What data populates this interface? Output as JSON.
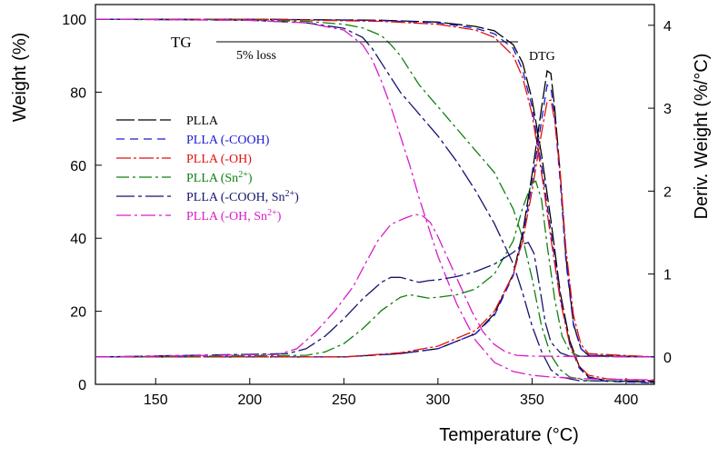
{
  "chart_data": {
    "type": "line",
    "xlabel": "Temperature (°C)",
    "ylabel_left": "Weight (%)",
    "ylabel_right": "Deriv. Weight (%/°C)",
    "xlim": [
      118,
      415
    ],
    "ylim_left": [
      0,
      104
    ],
    "ylim_right": [
      -0.33,
      4.25
    ],
    "x_ticks": [
      150,
      200,
      250,
      300,
      350,
      400
    ],
    "y_ticks_left": [
      0,
      20,
      40,
      60,
      80,
      100
    ],
    "y_ticks_right": [
      0,
      1,
      2,
      3,
      4
    ],
    "grid": false,
    "legend_position": "upper-left",
    "annotations": {
      "tg": "TG",
      "loss": "5% loss",
      "dtg": "DTG"
    },
    "series": [
      {
        "name": "PLLA",
        "legend_main": "PLLA",
        "legend_sup": "",
        "legend_tail": "",
        "color": "#000000",
        "dash": "20,4",
        "tg": [
          [
            118,
            100
          ],
          [
            200,
            100
          ],
          [
            270,
            99.7
          ],
          [
            300,
            99.2
          ],
          [
            320,
            98
          ],
          [
            330,
            96.8
          ],
          [
            340,
            93
          ],
          [
            345,
            88
          ],
          [
            350,
            78
          ],
          [
            355,
            63
          ],
          [
            360,
            45
          ],
          [
            365,
            25
          ],
          [
            370,
            12
          ],
          [
            375,
            5
          ],
          [
            380,
            2
          ],
          [
            390,
            1
          ],
          [
            415,
            0.5
          ]
        ],
        "dtg": [
          [
            118,
            0
          ],
          [
            250,
            0
          ],
          [
            280,
            0.04
          ],
          [
            300,
            0.1
          ],
          [
            320,
            0.28
          ],
          [
            330,
            0.52
          ],
          [
            340,
            1.0
          ],
          [
            345,
            1.5
          ],
          [
            350,
            2.2
          ],
          [
            355,
            3.0
          ],
          [
            358,
            3.45
          ],
          [
            360,
            3.42
          ],
          [
            362,
            3.0
          ],
          [
            365,
            2.2
          ],
          [
            368,
            1.2
          ],
          [
            372,
            0.4
          ],
          [
            376,
            0.1
          ],
          [
            380,
            0.02
          ],
          [
            415,
            0
          ]
        ]
      },
      {
        "name": "PLLA (-COOH)",
        "legend_main": "PLLA (-COOH)",
        "legend_sup": "",
        "legend_tail": "",
        "color": "#1a1ad0",
        "dash": "9,6",
        "tg": [
          [
            118,
            100
          ],
          [
            200,
            100
          ],
          [
            270,
            99.6
          ],
          [
            300,
            99
          ],
          [
            320,
            97.5
          ],
          [
            330,
            96
          ],
          [
            340,
            92
          ],
          [
            345,
            86
          ],
          [
            350,
            76
          ],
          [
            355,
            60
          ],
          [
            360,
            42
          ],
          [
            365,
            24
          ],
          [
            370,
            11
          ],
          [
            375,
            4.5
          ],
          [
            380,
            1.8
          ],
          [
            390,
            0.8
          ],
          [
            415,
            0.4
          ]
        ],
        "dtg": [
          [
            118,
            0
          ],
          [
            250,
            0
          ],
          [
            280,
            0.04
          ],
          [
            300,
            0.1
          ],
          [
            320,
            0.28
          ],
          [
            330,
            0.5
          ],
          [
            340,
            0.98
          ],
          [
            345,
            1.45
          ],
          [
            350,
            2.1
          ],
          [
            355,
            2.85
          ],
          [
            358,
            3.28
          ],
          [
            360,
            3.25
          ],
          [
            362,
            2.9
          ],
          [
            365,
            2.1
          ],
          [
            368,
            1.15
          ],
          [
            372,
            0.38
          ],
          [
            376,
            0.1
          ],
          [
            380,
            0.02
          ],
          [
            415,
            0
          ]
        ]
      },
      {
        "name": "PLLA (-OH)",
        "legend_main": "PLLA (-OH)",
        "legend_sup": "",
        "legend_tail": "",
        "color": "#e01010",
        "dash": "16,3,3,3",
        "tg": [
          [
            118,
            100
          ],
          [
            200,
            100
          ],
          [
            270,
            99.4
          ],
          [
            300,
            98.6
          ],
          [
            320,
            97
          ],
          [
            330,
            95
          ],
          [
            340,
            90
          ],
          [
            345,
            84
          ],
          [
            350,
            74
          ],
          [
            355,
            58
          ],
          [
            360,
            40
          ],
          [
            365,
            23
          ],
          [
            370,
            11
          ],
          [
            375,
            5
          ],
          [
            380,
            2.5
          ],
          [
            390,
            1.5
          ],
          [
            415,
            1
          ]
        ],
        "dtg": [
          [
            118,
            0
          ],
          [
            250,
            0
          ],
          [
            280,
            0.05
          ],
          [
            300,
            0.13
          ],
          [
            320,
            0.32
          ],
          [
            330,
            0.55
          ],
          [
            340,
            1.0
          ],
          [
            345,
            1.4
          ],
          [
            350,
            2.0
          ],
          [
            355,
            2.7
          ],
          [
            358,
            3.08
          ],
          [
            360,
            3.1
          ],
          [
            362,
            2.85
          ],
          [
            365,
            2.2
          ],
          [
            368,
            1.3
          ],
          [
            372,
            0.5
          ],
          [
            376,
            0.15
          ],
          [
            380,
            0.04
          ],
          [
            415,
            0
          ]
        ]
      },
      {
        "name": "PLLA (Sn2+)",
        "legend_main": "PLLA (Sn",
        "legend_sup": "2+",
        "legend_tail": ")",
        "color": "#108010",
        "dash": "14,4,3,4",
        "tg": [
          [
            118,
            100
          ],
          [
            200,
            99.8
          ],
          [
            230,
            99.4
          ],
          [
            250,
            98.6
          ],
          [
            260,
            97.6
          ],
          [
            270,
            95.5
          ],
          [
            275,
            93
          ],
          [
            280,
            90
          ],
          [
            285,
            86
          ],
          [
            290,
            82
          ],
          [
            300,
            76
          ],
          [
            310,
            70
          ],
          [
            320,
            64
          ],
          [
            330,
            58
          ],
          [
            340,
            48
          ],
          [
            345,
            40
          ],
          [
            350,
            29
          ],
          [
            355,
            16
          ],
          [
            360,
            8
          ],
          [
            365,
            4
          ],
          [
            370,
            2
          ],
          [
            380,
            1
          ],
          [
            415,
            0.8
          ]
        ],
        "dtg": [
          [
            118,
            0
          ],
          [
            230,
            0.02
          ],
          [
            240,
            0.06
          ],
          [
            250,
            0.16
          ],
          [
            260,
            0.34
          ],
          [
            270,
            0.56
          ],
          [
            280,
            0.72
          ],
          [
            285,
            0.75
          ],
          [
            290,
            0.73
          ],
          [
            295,
            0.71
          ],
          [
            300,
            0.72
          ],
          [
            310,
            0.75
          ],
          [
            320,
            0.82
          ],
          [
            330,
            1.0
          ],
          [
            340,
            1.4
          ],
          [
            345,
            1.8
          ],
          [
            350,
            2.1
          ],
          [
            352,
            2.12
          ],
          [
            355,
            1.9
          ],
          [
            358,
            1.35
          ],
          [
            362,
            0.7
          ],
          [
            366,
            0.25
          ],
          [
            370,
            0.07
          ],
          [
            375,
            0.01
          ],
          [
            415,
            0
          ]
        ]
      },
      {
        "name": "PLLA (-COOH, Sn2+)",
        "legend_main": "PLLA (-COOH, Sn",
        "legend_sup": "2+",
        "legend_tail": ")",
        "color": "#14146e",
        "dash": "20,4,4,4",
        "tg": [
          [
            118,
            100
          ],
          [
            200,
            99.7
          ],
          [
            230,
            99
          ],
          [
            250,
            97.5
          ],
          [
            260,
            95
          ],
          [
            265,
            92
          ],
          [
            270,
            88
          ],
          [
            275,
            84
          ],
          [
            280,
            80
          ],
          [
            285,
            77
          ],
          [
            290,
            74
          ],
          [
            300,
            68
          ],
          [
            310,
            61
          ],
          [
            320,
            53
          ],
          [
            330,
            44
          ],
          [
            340,
            33
          ],
          [
            345,
            25
          ],
          [
            350,
            16
          ],
          [
            355,
            9
          ],
          [
            360,
            4
          ],
          [
            365,
            2
          ],
          [
            375,
            1
          ],
          [
            415,
            0.8
          ]
        ],
        "dtg": [
          [
            118,
            0
          ],
          [
            220,
            0.04
          ],
          [
            230,
            0.1
          ],
          [
            240,
            0.25
          ],
          [
            250,
            0.46
          ],
          [
            260,
            0.7
          ],
          [
            270,
            0.9
          ],
          [
            275,
            0.96
          ],
          [
            280,
            0.96
          ],
          [
            285,
            0.93
          ],
          [
            290,
            0.9
          ],
          [
            295,
            0.92
          ],
          [
            300,
            0.93
          ],
          [
            310,
            0.97
          ],
          [
            320,
            1.03
          ],
          [
            330,
            1.12
          ],
          [
            340,
            1.26
          ],
          [
            345,
            1.36
          ],
          [
            348,
            1.38
          ],
          [
            351,
            1.25
          ],
          [
            354,
            0.85
          ],
          [
            357,
            0.42
          ],
          [
            360,
            0.18
          ],
          [
            365,
            0.05
          ],
          [
            370,
            0.01
          ],
          [
            415,
            0
          ]
        ]
      },
      {
        "name": "PLLA (-OH, Sn2+)",
        "legend_main": "PLLA (-OH, Sn",
        "legend_sup": "2+",
        "legend_tail": ")",
        "color": "#d81cc8",
        "dash": "16,4,3,4",
        "tg": [
          [
            118,
            100
          ],
          [
            200,
            99.7
          ],
          [
            230,
            99
          ],
          [
            250,
            97
          ],
          [
            260,
            93
          ],
          [
            265,
            89
          ],
          [
            270,
            83
          ],
          [
            275,
            76
          ],
          [
            280,
            68
          ],
          [
            285,
            60
          ],
          [
            290,
            51
          ],
          [
            295,
            43
          ],
          [
            300,
            35
          ],
          [
            310,
            22
          ],
          [
            320,
            12
          ],
          [
            330,
            6
          ],
          [
            340,
            3.5
          ],
          [
            350,
            2.5
          ],
          [
            360,
            2
          ],
          [
            380,
            1.5
          ],
          [
            415,
            1.2
          ]
        ],
        "dtg": [
          [
            118,
            0
          ],
          [
            215,
            0.03
          ],
          [
            225,
            0.1
          ],
          [
            235,
            0.3
          ],
          [
            245,
            0.55
          ],
          [
            255,
            0.85
          ],
          [
            262,
            1.15
          ],
          [
            268,
            1.4
          ],
          [
            275,
            1.6
          ],
          [
            282,
            1.67
          ],
          [
            288,
            1.72
          ],
          [
            292,
            1.7
          ],
          [
            296,
            1.62
          ],
          [
            300,
            1.45
          ],
          [
            306,
            1.15
          ],
          [
            312,
            0.85
          ],
          [
            318,
            0.55
          ],
          [
            324,
            0.3
          ],
          [
            330,
            0.15
          ],
          [
            336,
            0.06
          ],
          [
            342,
            0.02
          ],
          [
            350,
            0.01
          ],
          [
            415,
            0
          ]
        ]
      }
    ]
  }
}
